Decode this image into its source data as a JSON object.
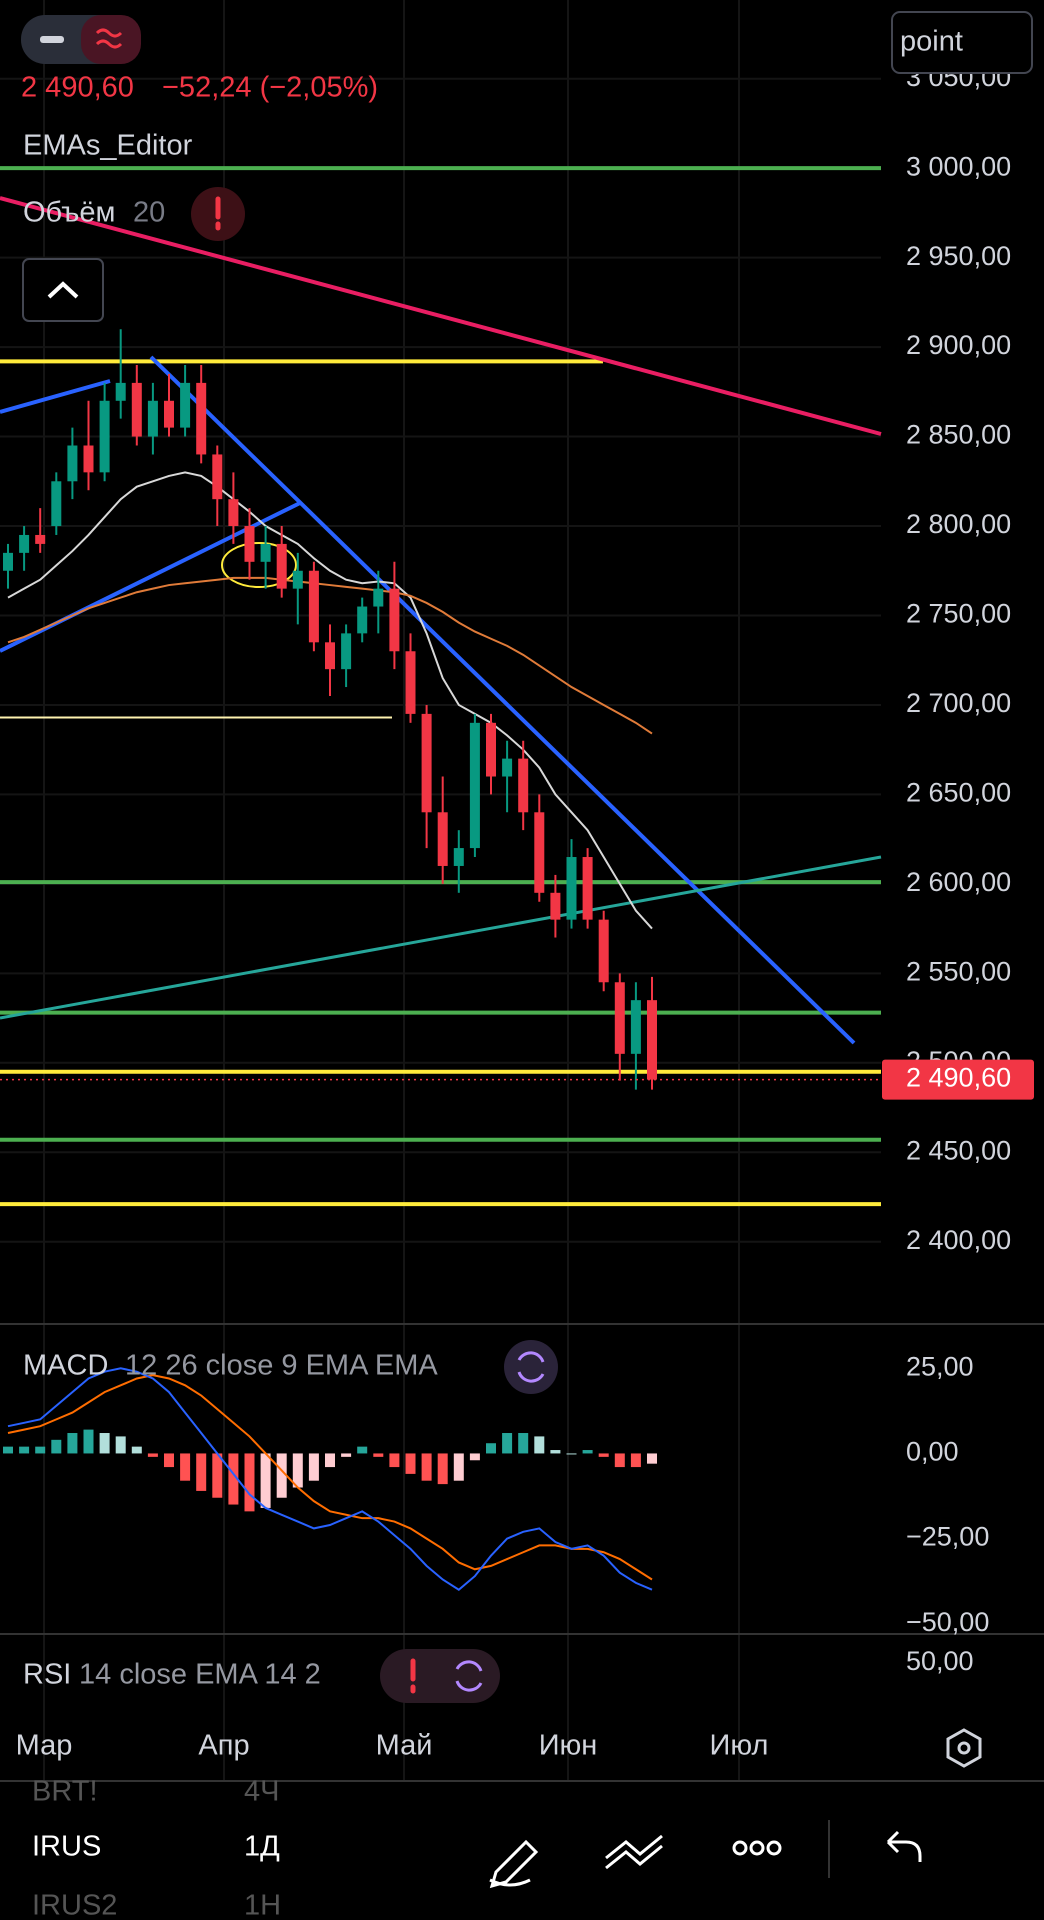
{
  "header": {
    "price": "2 490,60",
    "change": "−52,24 (−2,05%)",
    "mode_input": "point"
  },
  "indicators": {
    "ema_editor": "EMAs_Editor",
    "volume_name": "Объём",
    "volume_length": "20"
  },
  "chart_data": [
    {
      "type": "candlestick",
      "open": [
        2775,
        2785,
        2795,
        2800,
        2825,
        2845,
        2830,
        2870,
        2880,
        2850,
        2870,
        2855,
        2880,
        2840,
        2815,
        2800,
        2780,
        2790,
        2765,
        2775,
        2735,
        2720,
        2740,
        2755,
        2765,
        2730,
        2695,
        2640,
        2610,
        2620,
        2690,
        2660,
        2670,
        2640,
        2595,
        2580,
        2615,
        2580,
        2545,
        2505,
        2535
      ],
      "high": [
        2790,
        2800,
        2810,
        2830,
        2855,
        2870,
        2880,
        2910,
        2890,
        2880,
        2885,
        2890,
        2890,
        2845,
        2830,
        2810,
        2800,
        2800,
        2785,
        2780,
        2745,
        2745,
        2760,
        2775,
        2780,
        2740,
        2700,
        2660,
        2630,
        2695,
        2695,
        2680,
        2680,
        2650,
        2605,
        2625,
        2620,
        2585,
        2550,
        2545,
        2548
      ],
      "low": [
        2765,
        2775,
        2785,
        2795,
        2815,
        2820,
        2825,
        2860,
        2845,
        2840,
        2850,
        2850,
        2835,
        2800,
        2790,
        2770,
        2765,
        2760,
        2745,
        2730,
        2705,
        2710,
        2735,
        2740,
        2720,
        2690,
        2620,
        2600,
        2595,
        2615,
        2650,
        2640,
        2630,
        2590,
        2570,
        2575,
        2575,
        2540,
        2490,
        2485,
        2485
      ],
      "close": [
        2785,
        2795,
        2790,
        2825,
        2845,
        2830,
        2870,
        2880,
        2850,
        2870,
        2855,
        2880,
        2840,
        2815,
        2800,
        2780,
        2790,
        2765,
        2775,
        2735,
        2720,
        2740,
        2755,
        2765,
        2730,
        2695,
        2640,
        2610,
        2620,
        2690,
        2660,
        2670,
        2640,
        2595,
        2580,
        2615,
        2580,
        2545,
        2505,
        2535,
        2490.6
      ],
      "up_color": "#089981",
      "down_color": "#f23645",
      "ema": [
        {
          "color": "#d8d8d8",
          "values": [
            2760,
            2765,
            2770,
            2778,
            2786,
            2795,
            2805,
            2815,
            2822,
            2825,
            2828,
            2830,
            2828,
            2822,
            2815,
            2808,
            2800,
            2795,
            2790,
            2782,
            2775,
            2770,
            2768,
            2769,
            2768,
            2760,
            2740,
            2715,
            2700,
            2695,
            2690,
            2683,
            2675,
            2665,
            2650,
            2640,
            2630,
            2615,
            2600,
            2585,
            2575
          ]
        },
        {
          "color": "#e07b39",
          "values": [
            2735,
            2738,
            2742,
            2746,
            2750,
            2754,
            2757,
            2760,
            2763,
            2765,
            2767,
            2768,
            2769,
            2770,
            2771,
            2771,
            2771,
            2770,
            2769,
            2768,
            2767,
            2766,
            2765,
            2764,
            2763,
            2761,
            2757,
            2752,
            2746,
            2741,
            2737,
            2733,
            2728,
            2722,
            2716,
            2710,
            2705,
            2700,
            2695,
            2690,
            2684
          ]
        }
      ],
      "levels": {
        "values": [
          3000,
          2892,
          2693,
          2601,
          2528,
          2495,
          2457,
          2421
        ],
        "colors": [
          "#4caf50",
          "#ffeb3b",
          "#fff3b0",
          "#4caf50",
          "#4caf50",
          "#ffeb3b",
          "#4caf50",
          "#ffeb3b"
        ]
      },
      "last_price_label": "2 490,60",
      "ylim": [
        2354,
        3094
      ],
      "yticks": [
        {
          "value": 3050,
          "label": "3 050,00"
        },
        {
          "value": 3000,
          "label": "3 000,00"
        },
        {
          "value": 2950,
          "label": "2 950,00"
        },
        {
          "value": 2900,
          "label": "2 900,00"
        },
        {
          "value": 2850,
          "label": "2 850,00"
        },
        {
          "value": 2800,
          "label": "2 800,00"
        },
        {
          "value": 2750,
          "label": "2 750,00"
        },
        {
          "value": 2700,
          "label": "2 700,00"
        },
        {
          "value": 2650,
          "label": "2 650,00"
        },
        {
          "value": 2600,
          "label": "2 600,00"
        },
        {
          "value": 2550,
          "label": "2 550,00"
        },
        {
          "value": 2500,
          "label": "2 500,00"
        },
        {
          "value": 2450,
          "label": "2 450,00"
        },
        {
          "value": 2400,
          "label": "2 400,00"
        }
      ]
    },
    {
      "type": "macd",
      "name": "MACD",
      "params": "12 26 close 9 EMA EMA",
      "macd": {
        "color": "#2962ff",
        "values": [
          8,
          9,
          10,
          14,
          18,
          22,
          24,
          25,
          24,
          22,
          18,
          12,
          6,
          0,
          -6,
          -12,
          -16,
          -18,
          -20,
          -22,
          -21,
          -19,
          -17,
          -20,
          -24,
          -28,
          -33,
          -37,
          -40,
          -36,
          -30,
          -25,
          -23,
          -22,
          -26,
          -28,
          -27,
          -30,
          -35,
          -38,
          -40
        ]
      },
      "signal": {
        "color": "#ff6d00",
        "values": [
          6,
          7,
          8,
          10,
          12,
          15,
          18,
          20,
          22,
          23,
          22,
          20,
          17,
          13,
          9,
          5,
          0,
          -5,
          -10,
          -14,
          -17,
          -18,
          -19,
          -19,
          -20,
          -22,
          -25,
          -28,
          -32,
          -34,
          -33,
          -31,
          -29,
          -27,
          -27,
          -28,
          -28,
          -29,
          -31,
          -34,
          -37
        ]
      },
      "histogram": [
        2,
        2,
        2,
        4,
        6,
        7,
        6,
        5,
        2,
        -1,
        -4,
        -8,
        -11,
        -13,
        -15,
        -17,
        -16,
        -13,
        -10,
        -8,
        -4,
        -1,
        2,
        -1,
        -4,
        -6,
        -8,
        -9,
        -8,
        -2,
        3,
        6,
        6,
        5,
        1,
        0,
        1,
        -1,
        -4,
        -4,
        -3
      ],
      "hist_colors": [
        "#26a69a",
        "#b2dfdb",
        "#ff5252",
        "#ffcdd2"
      ],
      "ylim": [
        -53,
        38
      ],
      "yticks": [
        {
          "value": 25,
          "label": "25,00"
        },
        {
          "value": 0,
          "label": "0,00"
        },
        {
          "value": -25,
          "label": "−25,00"
        },
        {
          "value": -50,
          "label": "−50,00"
        }
      ]
    },
    {
      "type": "rsi",
      "name": "RSI",
      "params": "14 close EMA 14 2",
      "ylim": [
        30,
        60
      ],
      "yticks": [
        {
          "value": 50,
          "label": "50,00"
        }
      ]
    }
  ],
  "time_axis": [
    "Мар",
    "Апр",
    "Май",
    "Июн",
    "Июл"
  ],
  "toolbar": {
    "rows": [
      {
        "symbol": "BRT!",
        "interval": "4Ч"
      },
      {
        "symbol": "IRUS",
        "interval": "1Д"
      },
      {
        "symbol": "IRUS2",
        "interval": "1Н"
      }
    ]
  }
}
